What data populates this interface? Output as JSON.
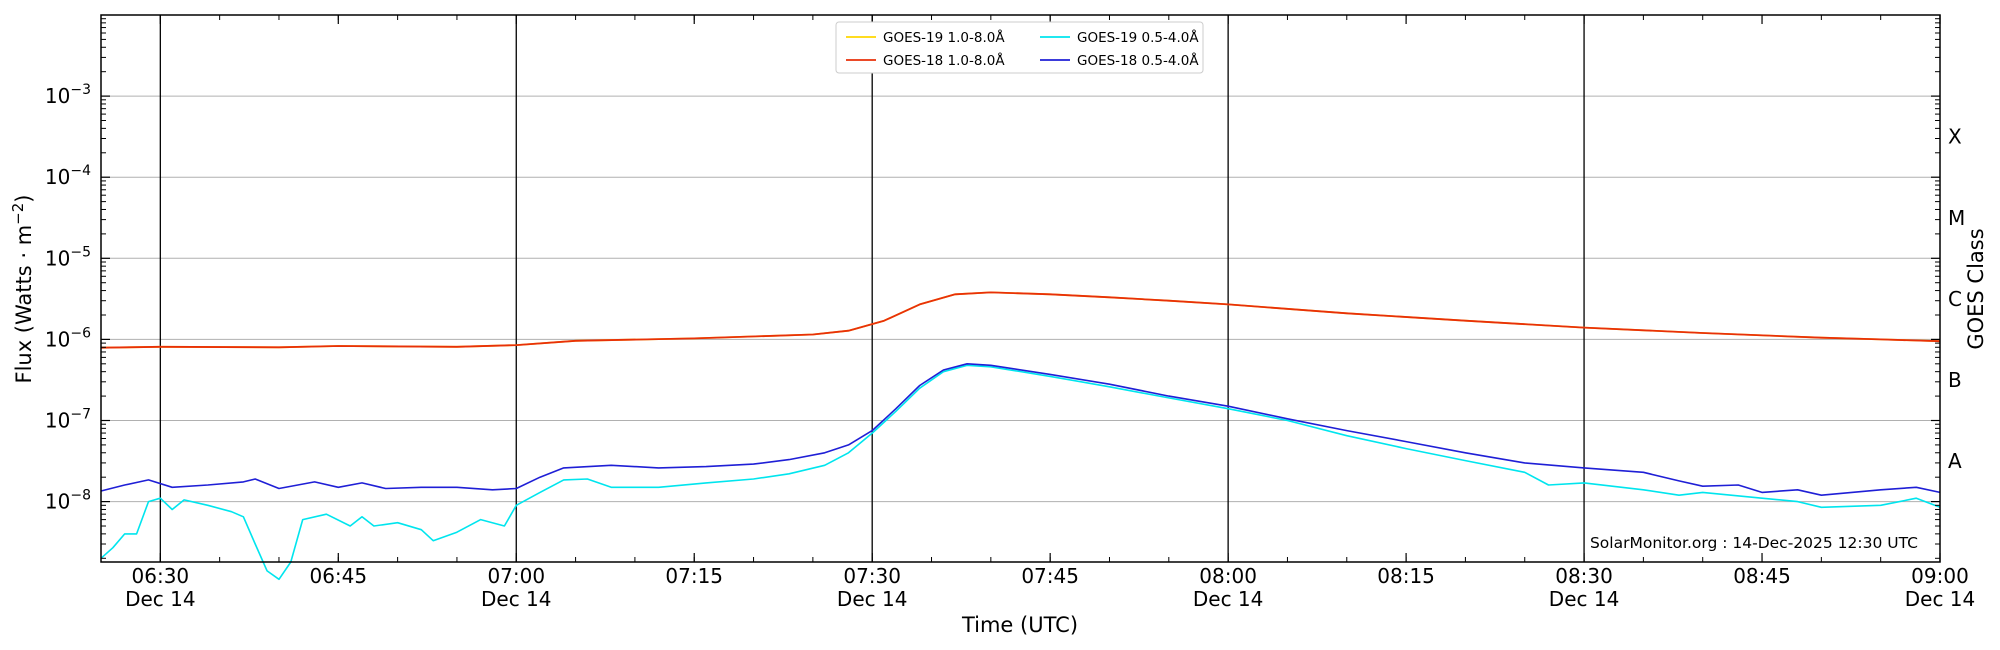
{
  "chart_data": {
    "type": "line",
    "title": "",
    "xlabel": "Time (UTC)",
    "ylabel": "Flux (Watts · m⁻²)",
    "y2label": "GOES Class",
    "yscale": "log",
    "ylim": [
      1.8e-09,
      0.01
    ],
    "xlim": [
      "06:25",
      "09:00"
    ],
    "grid": "horizontal at decades",
    "legend_position": "top-center",
    "watermark": "SolarMonitor.org : 14-Dec-2025 12:30 UTC",
    "x_ticks": [
      {
        "t": "06:30",
        "label": "06:30",
        "date": "Dec 14"
      },
      {
        "t": "06:45",
        "label": "06:45",
        "date": ""
      },
      {
        "t": "07:00",
        "label": "07:00",
        "date": "Dec 14"
      },
      {
        "t": "07:15",
        "label": "07:15",
        "date": ""
      },
      {
        "t": "07:30",
        "label": "07:30",
        "date": "Dec 14"
      },
      {
        "t": "07:45",
        "label": "07:45",
        "date": ""
      },
      {
        "t": "08:00",
        "label": "08:00",
        "date": "Dec 14"
      },
      {
        "t": "08:15",
        "label": "08:15",
        "date": ""
      },
      {
        "t": "08:30",
        "label": "08:30",
        "date": "Dec 14"
      },
      {
        "t": "08:45",
        "label": "08:45",
        "date": ""
      },
      {
        "t": "09:00",
        "label": "09:00",
        "date": "Dec 14"
      }
    ],
    "vertical_lines": [
      "06:30",
      "07:00",
      "07:30",
      "08:00",
      "08:30"
    ],
    "y_ticks": [
      {
        "value": 1e-08,
        "base": "10",
        "exp": "−8"
      },
      {
        "value": 1e-07,
        "base": "10",
        "exp": "−7"
      },
      {
        "value": 1e-06,
        "base": "10",
        "exp": "−6"
      },
      {
        "value": 1e-05,
        "base": "10",
        "exp": "−5"
      },
      {
        "value": 0.0001,
        "base": "10",
        "exp": "−4"
      },
      {
        "value": 0.001,
        "base": "10",
        "exp": "−3"
      }
    ],
    "goes_classes": [
      {
        "label": "A",
        "value": 3.16e-08
      },
      {
        "label": "B",
        "value": 3.16e-07
      },
      {
        "label": "C",
        "value": 3.16e-06
      },
      {
        "label": "M",
        "value": 3.16e-05
      },
      {
        "label": "X",
        "value": 0.000316
      }
    ],
    "series": [
      {
        "name": "GOES-19 1.0-8.0Å",
        "color": "#ffd700",
        "points": [
          [
            "06:25",
            7.9e-07
          ],
          [
            "06:30",
            8.1e-07
          ],
          [
            "06:40",
            8e-07
          ],
          [
            "06:45",
            8.3e-07
          ],
          [
            "06:55",
            8.1e-07
          ],
          [
            "07:00",
            8.5e-07
          ],
          [
            "07:05",
            9.6e-07
          ],
          [
            "07:15",
            1.03e-06
          ],
          [
            "07:25",
            1.15e-06
          ],
          [
            "07:28",
            1.28e-06
          ],
          [
            "07:31",
            1.7e-06
          ],
          [
            "07:34",
            2.7e-06
          ],
          [
            "07:37",
            3.6e-06
          ],
          [
            "07:40",
            3.8e-06
          ],
          [
            "07:45",
            3.6e-06
          ],
          [
            "07:50",
            3.3e-06
          ],
          [
            "07:55",
            3e-06
          ],
          [
            "08:00",
            2.7e-06
          ],
          [
            "08:10",
            2.1e-06
          ],
          [
            "08:20",
            1.7e-06
          ],
          [
            "08:30",
            1.4e-06
          ],
          [
            "08:40",
            1.2e-06
          ],
          [
            "08:50",
            1.05e-06
          ],
          [
            "08:55",
            1e-06
          ],
          [
            "09:00",
            9.5e-07
          ]
        ]
      },
      {
        "name": "GOES-18 1.0-8.0Å",
        "color": "#e8300a",
        "points": [
          [
            "06:25",
            7.9e-07
          ],
          [
            "06:30",
            8.1e-07
          ],
          [
            "06:40",
            8e-07
          ],
          [
            "06:45",
            8.3e-07
          ],
          [
            "06:55",
            8.1e-07
          ],
          [
            "07:00",
            8.5e-07
          ],
          [
            "07:05",
            9.6e-07
          ],
          [
            "07:15",
            1.03e-06
          ],
          [
            "07:25",
            1.15e-06
          ],
          [
            "07:28",
            1.28e-06
          ],
          [
            "07:31",
            1.7e-06
          ],
          [
            "07:34",
            2.7e-06
          ],
          [
            "07:37",
            3.6e-06
          ],
          [
            "07:40",
            3.8e-06
          ],
          [
            "07:45",
            3.6e-06
          ],
          [
            "07:50",
            3.3e-06
          ],
          [
            "07:55",
            3e-06
          ],
          [
            "08:00",
            2.7e-06
          ],
          [
            "08:10",
            2.1e-06
          ],
          [
            "08:20",
            1.7e-06
          ],
          [
            "08:30",
            1.4e-06
          ],
          [
            "08:40",
            1.2e-06
          ],
          [
            "08:50",
            1.05e-06
          ],
          [
            "08:55",
            1e-06
          ],
          [
            "09:00",
            9.5e-07
          ]
        ]
      },
      {
        "name": "GOES-19 0.5-4.0Å",
        "color": "#00e5ee",
        "points": [
          [
            "06:25",
            2e-09
          ],
          [
            "06:26",
            2.7e-09
          ],
          [
            "06:27",
            4e-09
          ],
          [
            "06:28",
            4e-09
          ],
          [
            "06:29",
            1e-08
          ],
          [
            "06:30",
            1.1e-08
          ],
          [
            "06:31",
            8e-09
          ],
          [
            "06:32",
            1.05e-08
          ],
          [
            "06:34",
            9e-09
          ],
          [
            "06:36",
            7.5e-09
          ],
          [
            "06:37",
            6.5e-09
          ],
          [
            "06:38",
            3e-09
          ],
          [
            "06:39",
            1.4e-09
          ],
          [
            "06:40",
            1.1e-09
          ],
          [
            "06:41",
            1.8e-09
          ],
          [
            "06:42",
            6e-09
          ],
          [
            "06:44",
            7e-09
          ],
          [
            "06:46",
            5e-09
          ],
          [
            "06:47",
            6.5e-09
          ],
          [
            "06:48",
            5e-09
          ],
          [
            "06:50",
            5.5e-09
          ],
          [
            "06:52",
            4.5e-09
          ],
          [
            "06:53",
            3.3e-09
          ],
          [
            "06:55",
            4.2e-09
          ],
          [
            "06:57",
            6e-09
          ],
          [
            "06:59",
            5e-09
          ],
          [
            "07:00",
            9e-09
          ],
          [
            "07:02",
            1.3e-08
          ],
          [
            "07:04",
            1.85e-08
          ],
          [
            "07:06",
            1.9e-08
          ],
          [
            "07:08",
            1.5e-08
          ],
          [
            "07:12",
            1.5e-08
          ],
          [
            "07:16",
            1.7e-08
          ],
          [
            "07:20",
            1.9e-08
          ],
          [
            "07:23",
            2.2e-08
          ],
          [
            "07:26",
            2.8e-08
          ],
          [
            "07:28",
            4e-08
          ],
          [
            "07:30",
            7e-08
          ],
          [
            "07:32",
            1.3e-07
          ],
          [
            "07:34",
            2.5e-07
          ],
          [
            "07:36",
            4e-07
          ],
          [
            "07:38",
            4.8e-07
          ],
          [
            "07:40",
            4.6e-07
          ],
          [
            "07:45",
            3.5e-07
          ],
          [
            "07:50",
            2.6e-07
          ],
          [
            "07:55",
            1.9e-07
          ],
          [
            "08:00",
            1.4e-07
          ],
          [
            "08:05",
            1e-07
          ],
          [
            "08:10",
            6.5e-08
          ],
          [
            "08:15",
            4.5e-08
          ],
          [
            "08:20",
            3.2e-08
          ],
          [
            "08:25",
            2.3e-08
          ],
          [
            "08:27",
            1.6e-08
          ],
          [
            "08:30",
            1.7e-08
          ],
          [
            "08:35",
            1.4e-08
          ],
          [
            "08:38",
            1.2e-08
          ],
          [
            "08:40",
            1.3e-08
          ],
          [
            "08:45",
            1.1e-08
          ],
          [
            "08:48",
            1e-08
          ],
          [
            "08:50",
            8.5e-09
          ],
          [
            "08:55",
            9e-09
          ],
          [
            "08:58",
            1.1e-08
          ],
          [
            "09:00",
            8.5e-09
          ]
        ]
      },
      {
        "name": "GOES-18 0.5-4.0Å",
        "color": "#1f1fd6",
        "points": [
          [
            "06:25",
            1.35e-08
          ],
          [
            "06:27",
            1.6e-08
          ],
          [
            "06:29",
            1.85e-08
          ],
          [
            "06:31",
            1.5e-08
          ],
          [
            "06:34",
            1.6e-08
          ],
          [
            "06:37",
            1.75e-08
          ],
          [
            "06:38",
            1.9e-08
          ],
          [
            "06:40",
            1.45e-08
          ],
          [
            "06:43",
            1.75e-08
          ],
          [
            "06:45",
            1.5e-08
          ],
          [
            "06:47",
            1.7e-08
          ],
          [
            "06:49",
            1.45e-08
          ],
          [
            "06:52",
            1.5e-08
          ],
          [
            "06:55",
            1.5e-08
          ],
          [
            "06:58",
            1.4e-08
          ],
          [
            "07:00",
            1.45e-08
          ],
          [
            "07:02",
            2e-08
          ],
          [
            "07:04",
            2.6e-08
          ],
          [
            "07:08",
            2.8e-08
          ],
          [
            "07:12",
            2.6e-08
          ],
          [
            "07:16",
            2.7e-08
          ],
          [
            "07:20",
            2.9e-08
          ],
          [
            "07:23",
            3.3e-08
          ],
          [
            "07:26",
            4e-08
          ],
          [
            "07:28",
            5e-08
          ],
          [
            "07:30",
            7.5e-08
          ],
          [
            "07:32",
            1.4e-07
          ],
          [
            "07:34",
            2.7e-07
          ],
          [
            "07:36",
            4.2e-07
          ],
          [
            "07:38",
            5e-07
          ],
          [
            "07:40",
            4.8e-07
          ],
          [
            "07:45",
            3.7e-07
          ],
          [
            "07:50",
            2.8e-07
          ],
          [
            "07:55",
            2e-07
          ],
          [
            "08:00",
            1.5e-07
          ],
          [
            "08:05",
            1.05e-07
          ],
          [
            "08:10",
            7.5e-08
          ],
          [
            "08:15",
            5.5e-08
          ],
          [
            "08:20",
            4e-08
          ],
          [
            "08:25",
            3e-08
          ],
          [
            "08:30",
            2.6e-08
          ],
          [
            "08:35",
            2.3e-08
          ],
          [
            "08:38",
            1.8e-08
          ],
          [
            "08:40",
            1.55e-08
          ],
          [
            "08:43",
            1.6e-08
          ],
          [
            "08:45",
            1.3e-08
          ],
          [
            "08:48",
            1.4e-08
          ],
          [
            "08:50",
            1.2e-08
          ],
          [
            "08:55",
            1.4e-08
          ],
          [
            "08:58",
            1.5e-08
          ],
          [
            "09:00",
            1.3e-08
          ]
        ]
      }
    ]
  }
}
